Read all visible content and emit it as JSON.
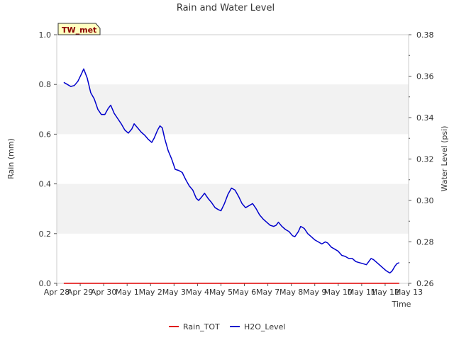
{
  "chart_data": {
    "type": "line",
    "title": "Rain and Water Level",
    "xlabel": "Time",
    "ylabel_left": "Rain (mm)",
    "ylabel_right": "Water Level (psi)",
    "site_label": "TW_met",
    "x_tick_labels": [
      "Apr 28",
      "Apr 29",
      "Apr 30",
      "May 1",
      "May 2",
      "May 3",
      "May 4",
      "May 5",
      "May 6",
      "May 7",
      "May 8",
      "May 9",
      "May 10",
      "May 11",
      "May 12",
      "May 13"
    ],
    "x_range_days": [
      0,
      15
    ],
    "y_left": {
      "ticks": [
        "0.0",
        "0.2",
        "0.4",
        "0.6",
        "0.8",
        "1.0"
      ],
      "range": [
        0,
        1.0
      ]
    },
    "y_right": {
      "ticks": [
        "0.26",
        "0.28",
        "0.30",
        "0.32",
        "0.34",
        "0.36",
        "0.38"
      ],
      "range": [
        0.26,
        0.38
      ]
    },
    "shaded_bands_left_axis": [
      [
        0.2,
        0.4
      ],
      [
        0.6,
        0.8
      ]
    ],
    "series": [
      {
        "name": "Rain_TOT",
        "axis": "left",
        "color": "#e00000",
        "points": [
          [
            0.3,
            0.0
          ],
          [
            14.6,
            0.0
          ]
        ]
      },
      {
        "name": "H2O_Level",
        "axis": "right",
        "color": "#0000cc",
        "points": [
          [
            0.3,
            0.357
          ],
          [
            0.45,
            0.356
          ],
          [
            0.6,
            0.355
          ],
          [
            0.75,
            0.3555
          ],
          [
            0.9,
            0.3575
          ],
          [
            1.05,
            0.361
          ],
          [
            1.15,
            0.3635
          ],
          [
            1.3,
            0.359
          ],
          [
            1.45,
            0.352
          ],
          [
            1.6,
            0.349
          ],
          [
            1.75,
            0.344
          ],
          [
            1.9,
            0.3415
          ],
          [
            2.05,
            0.3415
          ],
          [
            2.2,
            0.3445
          ],
          [
            2.3,
            0.346
          ],
          [
            2.45,
            0.342
          ],
          [
            2.6,
            0.3395
          ],
          [
            2.75,
            0.337
          ],
          [
            2.9,
            0.334
          ],
          [
            3.05,
            0.3325
          ],
          [
            3.2,
            0.3345
          ],
          [
            3.3,
            0.337
          ],
          [
            3.45,
            0.335
          ],
          [
            3.6,
            0.333
          ],
          [
            3.75,
            0.3315
          ],
          [
            3.9,
            0.3295
          ],
          [
            4.05,
            0.328
          ],
          [
            4.15,
            0.33
          ],
          [
            4.3,
            0.334
          ],
          [
            4.4,
            0.336
          ],
          [
            4.5,
            0.335
          ],
          [
            4.6,
            0.33
          ],
          [
            4.75,
            0.324
          ],
          [
            4.9,
            0.32
          ],
          [
            5.05,
            0.315
          ],
          [
            5.2,
            0.3145
          ],
          [
            5.35,
            0.3135
          ],
          [
            5.5,
            0.31
          ],
          [
            5.65,
            0.307
          ],
          [
            5.8,
            0.305
          ],
          [
            5.95,
            0.301
          ],
          [
            6.05,
            0.3
          ],
          [
            6.2,
            0.302
          ],
          [
            6.3,
            0.3035
          ],
          [
            6.45,
            0.301
          ],
          [
            6.6,
            0.299
          ],
          [
            6.75,
            0.2965
          ],
          [
            6.9,
            0.2955
          ],
          [
            7.0,
            0.295
          ],
          [
            7.15,
            0.2985
          ],
          [
            7.3,
            0.303
          ],
          [
            7.45,
            0.306
          ],
          [
            7.6,
            0.305
          ],
          [
            7.75,
            0.302
          ],
          [
            7.9,
            0.2985
          ],
          [
            8.05,
            0.2965
          ],
          [
            8.2,
            0.2975
          ],
          [
            8.35,
            0.2985
          ],
          [
            8.5,
            0.296
          ],
          [
            8.65,
            0.293
          ],
          [
            8.8,
            0.291
          ],
          [
            8.95,
            0.2895
          ],
          [
            9.1,
            0.288
          ],
          [
            9.25,
            0.2875
          ],
          [
            9.35,
            0.288
          ],
          [
            9.45,
            0.2895
          ],
          [
            9.6,
            0.2875
          ],
          [
            9.75,
            0.286
          ],
          [
            9.9,
            0.285
          ],
          [
            10.05,
            0.283
          ],
          [
            10.15,
            0.2825
          ],
          [
            10.3,
            0.285
          ],
          [
            10.4,
            0.2875
          ],
          [
            10.55,
            0.2865
          ],
          [
            10.7,
            0.284
          ],
          [
            10.85,
            0.2825
          ],
          [
            11.0,
            0.281
          ],
          [
            11.15,
            0.28
          ],
          [
            11.3,
            0.279
          ],
          [
            11.45,
            0.28
          ],
          [
            11.55,
            0.2795
          ],
          [
            11.7,
            0.2775
          ],
          [
            11.85,
            0.2765
          ],
          [
            12.0,
            0.2755
          ],
          [
            12.15,
            0.2735
          ],
          [
            12.3,
            0.273
          ],
          [
            12.45,
            0.272
          ],
          [
            12.6,
            0.272
          ],
          [
            12.75,
            0.2705
          ],
          [
            12.9,
            0.27
          ],
          [
            13.05,
            0.2695
          ],
          [
            13.2,
            0.269
          ],
          [
            13.3,
            0.2705
          ],
          [
            13.4,
            0.272
          ],
          [
            13.5,
            0.2715
          ],
          [
            13.6,
            0.2705
          ],
          [
            13.75,
            0.269
          ],
          [
            13.9,
            0.2675
          ],
          [
            14.05,
            0.266
          ],
          [
            14.2,
            0.265
          ],
          [
            14.3,
            0.266
          ],
          [
            14.4,
            0.268
          ],
          [
            14.5,
            0.2695
          ],
          [
            14.6,
            0.27
          ]
        ]
      }
    ],
    "legend": [
      "Rain_TOT",
      "H2O_Level"
    ],
    "legend_position": "bottom-center"
  },
  "colors": {
    "band": "#f2f2f2",
    "axis": "#cccccc",
    "rain": "#e00000",
    "h2o": "#0000cc",
    "badge_bg": "#ffffc0"
  }
}
